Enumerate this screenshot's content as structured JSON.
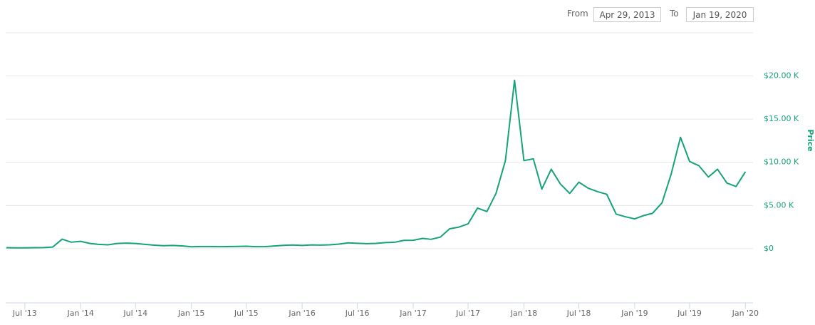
{
  "range_selector": {
    "from_label": "From",
    "from": "Apr 29, 2013",
    "to_label": "To",
    "to": "Jan 19, 2020"
  },
  "chart_data": {
    "type": "line",
    "y_label": "Price",
    "color": "#16a37a",
    "grid": true,
    "xlim": [
      "2013-04-29",
      "2020-01-19"
    ],
    "ylim": [
      -6281,
      25000
    ],
    "yticks": [
      {
        "value": 0,
        "label": "$0"
      },
      {
        "value": 5000,
        "label": "$5.00 K"
      },
      {
        "value": 10000,
        "label": "$10.00 K"
      },
      {
        "value": 15000,
        "label": "$15.00 K"
      },
      {
        "value": 20000,
        "label": "$20.00 K"
      }
    ],
    "xticks": [
      {
        "value": "2013-07",
        "label": "Jul '13"
      },
      {
        "value": "2014-01",
        "label": "Jan '14"
      },
      {
        "value": "2014-07",
        "label": "Jul '14"
      },
      {
        "value": "2015-01",
        "label": "Jan '15"
      },
      {
        "value": "2015-07",
        "label": "Jul '15"
      },
      {
        "value": "2016-01",
        "label": "Jan '16"
      },
      {
        "value": "2016-07",
        "label": "Jul '16"
      },
      {
        "value": "2017-01",
        "label": "Jan '17"
      },
      {
        "value": "2017-07",
        "label": "Jul '17"
      },
      {
        "value": "2018-01",
        "label": "Jan '18"
      },
      {
        "value": "2018-07",
        "label": "Jul '18"
      },
      {
        "value": "2019-01",
        "label": "Jan '19"
      },
      {
        "value": "2019-07",
        "label": "Jul '19"
      },
      {
        "value": "2020-01",
        "label": "Jan '20"
      }
    ],
    "x": [
      "2013-05",
      "2013-06",
      "2013-07",
      "2013-08",
      "2013-09",
      "2013-10",
      "2013-11",
      "2013-12",
      "2014-01",
      "2014-02",
      "2014-03",
      "2014-04",
      "2014-05",
      "2014-06",
      "2014-07",
      "2014-08",
      "2014-09",
      "2014-10",
      "2014-11",
      "2014-12",
      "2015-01",
      "2015-02",
      "2015-03",
      "2015-04",
      "2015-05",
      "2015-06",
      "2015-07",
      "2015-08",
      "2015-09",
      "2015-10",
      "2015-11",
      "2015-12",
      "2016-01",
      "2016-02",
      "2016-03",
      "2016-04",
      "2016-05",
      "2016-06",
      "2016-07",
      "2016-08",
      "2016-09",
      "2016-10",
      "2016-11",
      "2016-12",
      "2017-01",
      "2017-02",
      "2017-03",
      "2017-04",
      "2017-05",
      "2017-06",
      "2017-07",
      "2017-08",
      "2017-09",
      "2017-10",
      "2017-11",
      "2017-12",
      "2018-01",
      "2018-02",
      "2018-03",
      "2018-04",
      "2018-05",
      "2018-06",
      "2018-07",
      "2018-08",
      "2018-09",
      "2018-10",
      "2018-11",
      "2018-12",
      "2019-01",
      "2019-02",
      "2019-03",
      "2019-04",
      "2019-05",
      "2019-06",
      "2019-07",
      "2019-08",
      "2019-09",
      "2019-10",
      "2019-11",
      "2019-12",
      "2020-01"
    ],
    "values": [
      120,
      100,
      95,
      120,
      130,
      190,
      1100,
      750,
      850,
      600,
      500,
      450,
      600,
      640,
      600,
      500,
      400,
      340,
      370,
      320,
      220,
      250,
      250,
      230,
      235,
      260,
      285,
      230,
      235,
      310,
      380,
      430,
      370,
      435,
      415,
      450,
      530,
      670,
      625,
      575,
      610,
      700,
      740,
      960,
      970,
      1190,
      1080,
      1350,
      2300,
      2500,
      2880,
      4700,
      4300,
      6400,
      10200,
      19500,
      10200,
      10400,
      6900,
      9200,
      7500,
      6400,
      7700,
      7000,
      6600,
      6300,
      4000,
      3700,
      3450,
      3850,
      4100,
      5300,
      8600,
      12900,
      10100,
      9600,
      8300,
      9200,
      7600,
      7200,
      8900
    ]
  }
}
